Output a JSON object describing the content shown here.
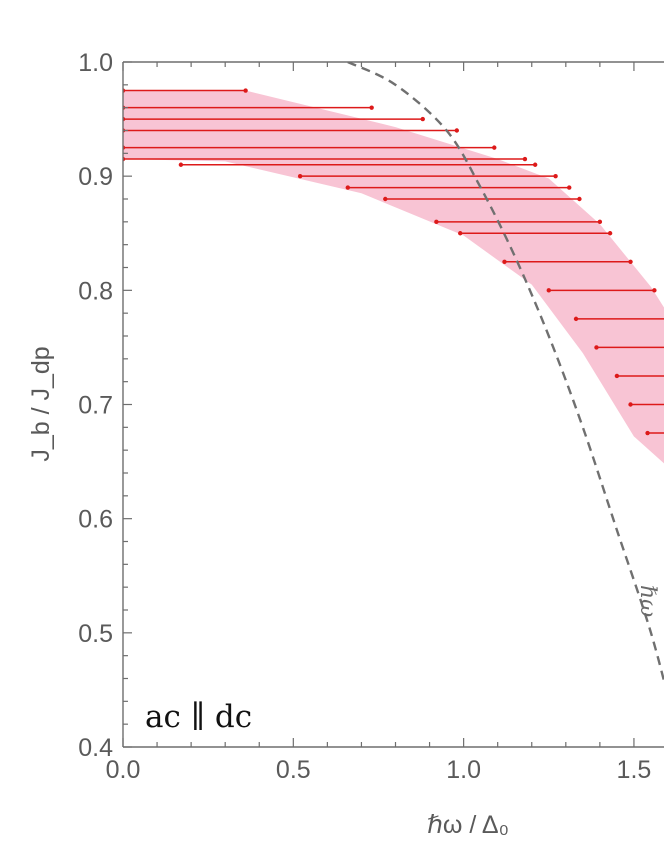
{
  "chart_data": {
    "type": "line",
    "xlabel": "ℏω / Δ₀",
    "ylabel": "J_b / J_dp",
    "xlim": [
      0.0,
      1.6
    ],
    "ylim": [
      0.4,
      1.0
    ],
    "x_ticks": [
      "0.0",
      "0.5",
      "1.0",
      "1.5"
    ],
    "y_ticks": [
      "0.4",
      "0.5",
      "0.6",
      "0.7",
      "0.8",
      "0.9",
      "1.0"
    ],
    "annotation": "ac ∥ dc",
    "curve_label": "ℏω",
    "colors": {
      "segment": "#dd1a1a",
      "band": "#f8c4d4",
      "curve": "#707070",
      "axis": "#6e6e6e"
    },
    "dashed_curve": [
      [
        0.66,
        1.0
      ],
      [
        0.8,
        0.98
      ],
      [
        0.95,
        0.94
      ],
      [
        1.05,
        0.89
      ],
      [
        1.15,
        0.83
      ],
      [
        1.25,
        0.76
      ],
      [
        1.35,
        0.68
      ],
      [
        1.45,
        0.59
      ],
      [
        1.55,
        0.5
      ],
      [
        1.62,
        0.42
      ]
    ],
    "band_upper": [
      [
        0.0,
        0.975
      ],
      [
        0.36,
        0.975
      ],
      [
        0.8,
        0.943
      ],
      [
        1.1,
        0.915
      ],
      [
        1.25,
        0.898
      ],
      [
        1.4,
        0.858
      ],
      [
        1.55,
        0.803
      ],
      [
        1.62,
        0.77
      ]
    ],
    "band_lower": [
      [
        0.0,
        0.915
      ],
      [
        0.3,
        0.913
      ],
      [
        0.7,
        0.885
      ],
      [
        1.0,
        0.848
      ],
      [
        1.2,
        0.805
      ],
      [
        1.35,
        0.745
      ],
      [
        1.5,
        0.672
      ],
      [
        1.62,
        0.64
      ]
    ],
    "segments": [
      {
        "x0": 0.0,
        "x1": 0.36,
        "y": 0.975
      },
      {
        "x0": 0.0,
        "x1": 0.73,
        "y": 0.96
      },
      {
        "x0": 0.0,
        "x1": 0.88,
        "y": 0.95
      },
      {
        "x0": 0.0,
        "x1": 0.98,
        "y": 0.94
      },
      {
        "x0": 0.0,
        "x1": 1.09,
        "y": 0.925
      },
      {
        "x0": 0.0,
        "x1": 1.18,
        "y": 0.915
      },
      {
        "x0": 0.17,
        "x1": 1.21,
        "y": 0.91
      },
      {
        "x0": 0.52,
        "x1": 1.27,
        "y": 0.9
      },
      {
        "x0": 0.66,
        "x1": 1.31,
        "y": 0.89
      },
      {
        "x0": 0.77,
        "x1": 1.34,
        "y": 0.88
      },
      {
        "x0": 0.92,
        "x1": 1.4,
        "y": 0.86
      },
      {
        "x0": 0.99,
        "x1": 1.43,
        "y": 0.85
      },
      {
        "x0": 1.12,
        "x1": 1.49,
        "y": 0.825
      },
      {
        "x0": 1.25,
        "x1": 1.56,
        "y": 0.8
      },
      {
        "x0": 1.33,
        "x1": 1.62,
        "y": 0.775
      },
      {
        "x0": 1.39,
        "x1": 1.62,
        "y": 0.75
      },
      {
        "x0": 1.45,
        "x1": 1.62,
        "y": 0.725
      },
      {
        "x0": 1.49,
        "x1": 1.62,
        "y": 0.7
      },
      {
        "x0": 1.54,
        "x1": 1.62,
        "y": 0.675
      }
    ]
  }
}
